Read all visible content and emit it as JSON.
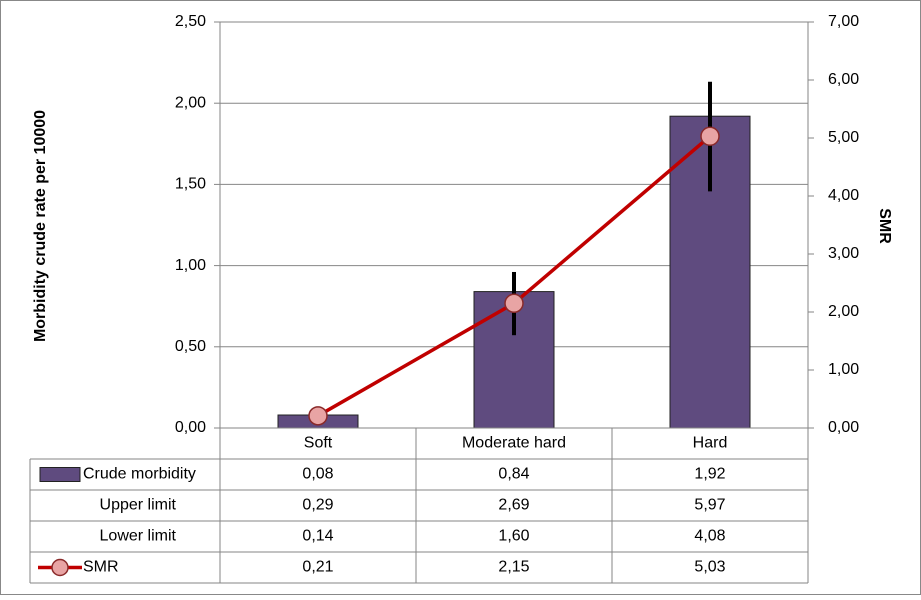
{
  "chart_data": {
    "type": "bar",
    "y_label": "Morbidity crude rate per 10000",
    "y2_label": "SMR",
    "categories": [
      "Soft",
      "Moderate hard",
      "Hard"
    ],
    "series": [
      {
        "name": "Crude morbidity",
        "type": "bar",
        "color": "#5f4b7f",
        "values": [
          0.08,
          0.84,
          1.92
        ],
        "value_labels": [
          "0,08",
          "0,84",
          "1,92"
        ]
      },
      {
        "name": "Upper limit",
        "type": "error_upper",
        "color": "#000000",
        "axis": "y2",
        "values": [
          0.29,
          2.69,
          5.97
        ],
        "value_labels": [
          "0,29",
          "2,69",
          "5,97"
        ]
      },
      {
        "name": "Lower limit",
        "type": "error_lower",
        "color": "#000000",
        "axis": "y2",
        "values": [
          0.14,
          1.6,
          4.08
        ],
        "value_labels": [
          "0,14",
          "1,60",
          "4,08"
        ]
      },
      {
        "name": "SMR",
        "type": "line",
        "color": "#c00000",
        "marker_color": "#e8a4a4",
        "axis": "y2",
        "values": [
          0.21,
          2.15,
          5.03
        ],
        "value_labels": [
          "0,21",
          "2,15",
          "5,03"
        ]
      }
    ],
    "ylim": [
      0,
      2.5
    ],
    "yticks": [
      {
        "value": 0,
        "label": "0,00"
      },
      {
        "value": 0.5,
        "label": "0,50"
      },
      {
        "value": 1,
        "label": "1,00"
      },
      {
        "value": 1.5,
        "label": "1,50"
      },
      {
        "value": 2,
        "label": "2,00"
      },
      {
        "value": 2.5,
        "label": "2,50"
      }
    ],
    "y2lim": [
      0,
      7
    ],
    "y2ticks": [
      {
        "value": 0,
        "label": "0,00"
      },
      {
        "value": 1,
        "label": "1,00"
      },
      {
        "value": 2,
        "label": "2,00"
      },
      {
        "value": 3,
        "label": "3,00"
      },
      {
        "value": 4,
        "label": "4,00"
      },
      {
        "value": 5,
        "label": "5,00"
      },
      {
        "value": 6,
        "label": "6,00"
      },
      {
        "value": 7,
        "label": "7,00"
      }
    ],
    "grid": true
  }
}
